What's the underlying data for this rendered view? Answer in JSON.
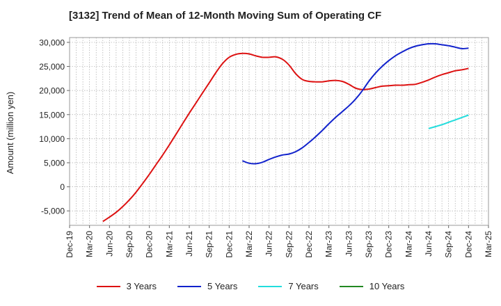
{
  "chart_data": {
    "type": "line",
    "title": "[3132]  Trend of Mean of 12-Month Moving Sum of Operating CF",
    "xlabel": "",
    "ylabel": "Amount (million yen)",
    "ylim": [
      -8000,
      31000
    ],
    "yticks": [
      30000,
      25000,
      20000,
      15000,
      10000,
      5000,
      0,
      -5000
    ],
    "ytick_labels": [
      "30,000",
      "25,000",
      "20,000",
      "15,000",
      "10,000",
      "5,000",
      "0",
      "-5,000"
    ],
    "x_range_months": [
      0,
      63
    ],
    "x_tick_labels": [
      "Dec-19",
      "Mar-20",
      "Jun-20",
      "Sep-20",
      "Dec-20",
      "Mar-21",
      "Jun-21",
      "Sep-21",
      "Dec-21",
      "Mar-22",
      "Jun-22",
      "Sep-22",
      "Dec-22",
      "Mar-23",
      "Jun-23",
      "Sep-23",
      "Dec-23",
      "Mar-24",
      "Jun-24",
      "Sep-24",
      "Dec-24",
      "Mar-25"
    ],
    "grid": true,
    "legend_position": "bottom",
    "series": [
      {
        "name": "3 Years",
        "color": "#dd1111",
        "x": [
          5,
          6,
          7,
          8,
          9,
          10,
          11,
          12,
          13,
          14,
          15,
          16,
          17,
          18,
          19,
          20,
          21,
          22,
          23,
          24,
          25,
          26,
          27,
          28,
          29,
          30,
          31,
          32,
          33,
          34,
          35,
          36,
          37,
          38,
          39,
          40,
          41,
          42,
          43,
          44,
          45,
          46,
          47,
          48,
          49,
          50,
          51,
          52,
          53,
          54,
          55,
          56,
          57,
          58,
          59,
          60
        ],
        "values": [
          -7200,
          -6300,
          -5300,
          -4100,
          -2700,
          -1100,
          700,
          2600,
          4600,
          6600,
          8700,
          10900,
          13100,
          15300,
          17400,
          19500,
          21600,
          23700,
          25600,
          26900,
          27500,
          27700,
          27600,
          27200,
          26900,
          26900,
          27000,
          26500,
          25300,
          23500,
          22300,
          21900,
          21800,
          21800,
          22000,
          22100,
          21900,
          21300,
          20500,
          20200,
          20300,
          20600,
          20900,
          21000,
          21100,
          21100,
          21200,
          21300,
          21700,
          22200,
          22800,
          23300,
          23700,
          24100,
          24300,
          24600
        ]
      },
      {
        "name": "5 Years",
        "color": "#1122cc",
        "x": [
          26,
          27,
          28,
          29,
          30,
          31,
          32,
          33,
          34,
          35,
          36,
          37,
          38,
          39,
          40,
          41,
          42,
          43,
          44,
          45,
          46,
          47,
          48,
          49,
          50,
          51,
          52,
          53,
          54,
          55,
          56,
          57,
          58,
          59,
          60
        ],
        "values": [
          5400,
          4900,
          4800,
          5100,
          5700,
          6200,
          6600,
          6800,
          7300,
          8100,
          9200,
          10400,
          11700,
          13100,
          14400,
          15600,
          16800,
          18200,
          19900,
          21900,
          23600,
          25000,
          26200,
          27200,
          28000,
          28700,
          29200,
          29500,
          29700,
          29700,
          29500,
          29300,
          29000,
          28700,
          28800
        ]
      },
      {
        "name": "7 Years",
        "color": "#22dddd",
        "x": [
          54,
          55,
          56,
          57,
          58,
          59,
          60
        ],
        "values": [
          12100,
          12500,
          12900,
          13400,
          13900,
          14400,
          14900
        ]
      },
      {
        "name": "10 Years",
        "color": "#228822",
        "x": [],
        "values": []
      }
    ]
  }
}
